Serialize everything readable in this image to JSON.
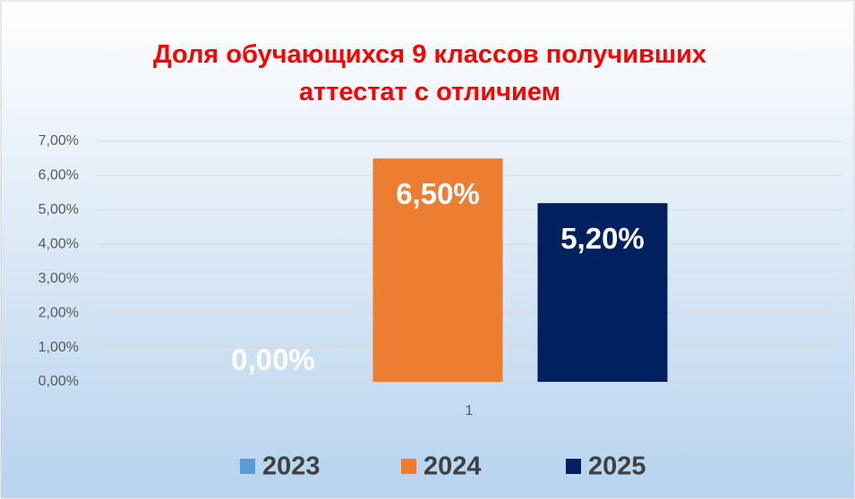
{
  "chart_data": {
    "type": "bar",
    "title": "Доля обучающихся 9 классов получивших аттестат с отличием",
    "categories": [
      "1"
    ],
    "series": [
      {
        "name": "2023",
        "color": "#5b9bd5",
        "values": [
          0
        ],
        "value_labels": [
          "0,00%"
        ]
      },
      {
        "name": "2024",
        "color": "#ed7d31",
        "values": [
          6.5
        ],
        "value_labels": [
          "6,50%"
        ]
      },
      {
        "name": "2025",
        "color": "#002060",
        "values": [
          5.2
        ],
        "value_labels": [
          "5,20%"
        ]
      }
    ],
    "ylim": [
      0,
      7
    ],
    "yticks": [
      {
        "value": 0,
        "label": "0,00%"
      },
      {
        "value": 1,
        "label": "1,00%"
      },
      {
        "value": 2,
        "label": "2,00%"
      },
      {
        "value": 3,
        "label": "3,00%"
      },
      {
        "value": 4,
        "label": "4,00%"
      },
      {
        "value": 5,
        "label": "5,00%"
      },
      {
        "value": 6,
        "label": "6,00%"
      },
      {
        "value": 7,
        "label": "7,00%"
      }
    ],
    "grid": true,
    "legend": "bottom"
  }
}
